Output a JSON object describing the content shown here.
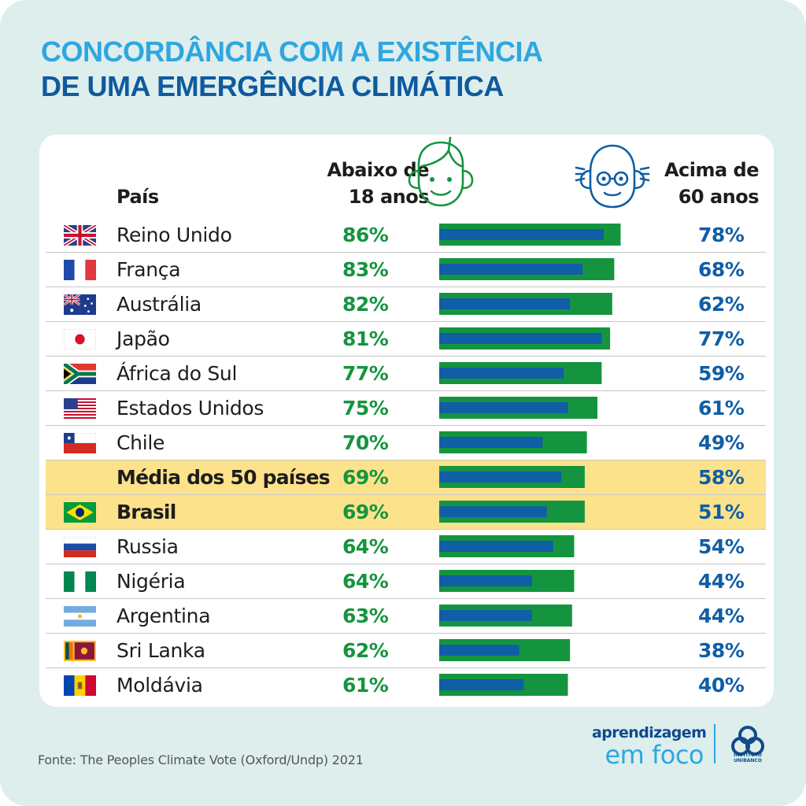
{
  "title": {
    "line1": "CONCORDÂNCIA COM A EXISTÊNCIA",
    "line2": "DE UMA EMERGÊNCIA CLIMÁTICA"
  },
  "headers": {
    "country": "País",
    "under18_line1": "Abaixo de",
    "under18_line2": "18 anos",
    "over60_line1": "Acima de",
    "over60_line2": "60 anos"
  },
  "icons": {
    "under18": "young-face-icon",
    "over60": "old-face-with-glasses-icon"
  },
  "colors": {
    "under18": "#15943f",
    "over60": "#0f5ea6",
    "highlight_row": "#fde28c",
    "title_light": "#2fa6e0",
    "title_dark": "#0f5a9e"
  },
  "rows": [
    {
      "country": "Reino Unido",
      "flag": "uk-flag-icon",
      "under18": "86%",
      "over60": "78%",
      "highlight": false
    },
    {
      "country": "França",
      "flag": "france-flag-icon",
      "under18": "83%",
      "over60": "68%",
      "highlight": false
    },
    {
      "country": "Austrália",
      "flag": "australia-flag-icon",
      "under18": "82%",
      "over60": "62%",
      "highlight": false
    },
    {
      "country": "Japão",
      "flag": "japan-flag-icon",
      "under18": "81%",
      "over60": "77%",
      "highlight": false
    },
    {
      "country": "África do Sul",
      "flag": "south-africa-flag-icon",
      "under18": "77%",
      "over60": "59%",
      "highlight": false
    },
    {
      "country": "Estados Unidos",
      "flag": "usa-flag-icon",
      "under18": "75%",
      "over60": "61%",
      "highlight": false
    },
    {
      "country": "Chile",
      "flag": "chile-flag-icon",
      "under18": "70%",
      "over60": "49%",
      "highlight": false
    },
    {
      "country": "Média dos 50 países",
      "flag": "",
      "under18": "69%",
      "over60": "58%",
      "highlight": true
    },
    {
      "country": "Brasil",
      "flag": "brazil-flag-icon",
      "under18": "69%",
      "over60": "51%",
      "highlight": true
    },
    {
      "country": "Russia",
      "flag": "russia-flag-icon",
      "under18": "64%",
      "over60": "54%",
      "highlight": false
    },
    {
      "country": "Nigéria",
      "flag": "nigeria-flag-icon",
      "under18": "64%",
      "over60": "44%",
      "highlight": false
    },
    {
      "country": "Argentina",
      "flag": "argentina-flag-icon",
      "under18": "63%",
      "over60": "44%",
      "highlight": false
    },
    {
      "country": "Sri Lanka",
      "flag": "sri-lanka-flag-icon",
      "under18": "62%",
      "over60": "38%",
      "highlight": false
    },
    {
      "country": "Moldávia",
      "flag": "moldova-flag-icon",
      "under18": "61%",
      "over60": "40%",
      "highlight": false
    }
  ],
  "chart_data": {
    "type": "bar",
    "categories": [
      "Reino Unido",
      "França",
      "Austrália",
      "Japão",
      "África do Sul",
      "Estados Unidos",
      "Chile",
      "Média dos 50 países",
      "Brasil",
      "Russia",
      "Nigéria",
      "Argentina",
      "Sri Lanka",
      "Moldávia"
    ],
    "series": [
      {
        "name": "Abaixo de 18 anos",
        "color": "#15943f",
        "values": [
          86,
          83,
          82,
          81,
          77,
          75,
          70,
          69,
          69,
          64,
          64,
          63,
          62,
          61
        ]
      },
      {
        "name": "Acima de 60 anos",
        "color": "#0f5ea6",
        "values": [
          78,
          68,
          62,
          77,
          59,
          61,
          49,
          58,
          51,
          54,
          44,
          44,
          38,
          40
        ]
      }
    ],
    "title": "CONCORDÂNCIA COM A EXISTÊNCIA DE UMA EMERGÊNCIA CLIMÁTICA",
    "xlim": [
      0,
      100
    ],
    "orientation": "horizontal",
    "overlay": true,
    "grid": false
  },
  "source": "Fonte: The Peoples Climate Vote (Oxford/Undp) 2021",
  "logo": {
    "line1": "aprendizagem",
    "line2": "em foco",
    "org_line1": "INSTITUTO",
    "org_line2": "UNIBANCO"
  }
}
